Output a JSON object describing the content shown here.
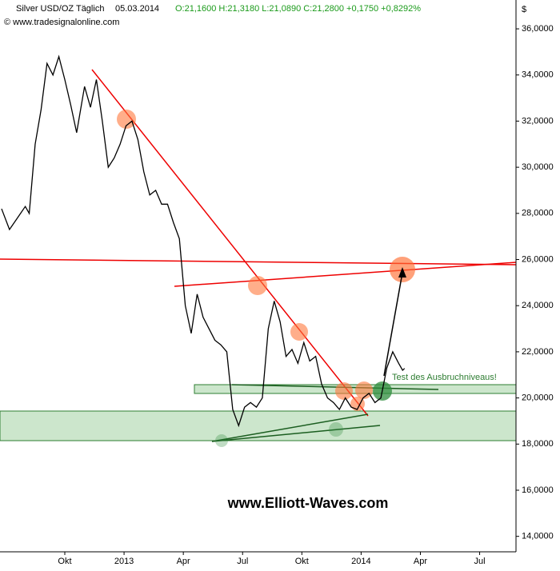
{
  "chart_data": {
    "type": "line",
    "title": "Silver USD/OZ Täglich",
    "date": "05.03.2014",
    "quote": "O:21,1600 H:21,3180 L:21,0890 C:21,2800 +0,1750 +0,8292%",
    "source": "© www.tradesignalonline.com",
    "y_unit": "$",
    "annotation": "Test des Ausbruchniveaus!",
    "watermark": "www.Elliott-Waves.com",
    "x": [
      -6.2,
      -5.8,
      -5.4,
      -5,
      -4.8,
      -4.5,
      -4.2,
      -3.9,
      -3.6,
      -3.3,
      -3,
      -2.7,
      -2.4,
      -2,
      -1.7,
      -1.4,
      -1.1,
      -0.8,
      -0.5,
      -0.2,
      0.1,
      0.4,
      0.7,
      1,
      1.3,
      1.6,
      1.9,
      2.2,
      2.5,
      2.8,
      3.1,
      3.4,
      3.7,
      4,
      4.3,
      4.6,
      4.9,
      5.2,
      5.5,
      5.8,
      6.1,
      6.4,
      6.7,
      7,
      7.3,
      7.6,
      7.9,
      8.2,
      8.5,
      8.8,
      9.1,
      9.4,
      9.7,
      10,
      10.3,
      10.6,
      10.9,
      11.2,
      11.5,
      11.8,
      12.1,
      12.4,
      12.7,
      13,
      13.3,
      13.6,
      13.9,
      14.1,
      14.2
    ],
    "series": [
      {
        "name": "Silver USD/OZ",
        "color": "#000000",
        "values": [
          28.2,
          27.3,
          27.8,
          28.3,
          28.0,
          31.0,
          32.5,
          34.5,
          34.0,
          34.8,
          33.8,
          32.7,
          31.5,
          33.5,
          32.6,
          33.8,
          32.0,
          30.0,
          30.4,
          31.0,
          31.8,
          32.0,
          31.2,
          29.8,
          28.8,
          29.0,
          28.4,
          28.4,
          27.6,
          26.9,
          24.0,
          22.8,
          24.5,
          23.5,
          23.0,
          22.5,
          22.3,
          22.0,
          19.5,
          18.8,
          19.6,
          19.8,
          19.6,
          20.0,
          23.0,
          24.2,
          23.3,
          21.8,
          22.1,
          21.5,
          22.4,
          21.6,
          21.8,
          20.6,
          20.0,
          19.8,
          19.5,
          20.0,
          19.6,
          19.5,
          20.0,
          20.2,
          19.8,
          20.0,
          21.3,
          22.0,
          21.5,
          21.2,
          21.28
        ]
      }
    ],
    "xlim": [
      -6.28,
      19.84
    ],
    "xticks": [
      {
        "value": -3,
        "label": "Okt"
      },
      {
        "value": 0,
        "label": "2013"
      },
      {
        "value": 3,
        "label": "Apr"
      },
      {
        "value": 6,
        "label": "Jul"
      },
      {
        "value": 9,
        "label": "Okt"
      },
      {
        "value": 12,
        "label": "2014"
      },
      {
        "value": 15,
        "label": "Apr"
      },
      {
        "value": 18,
        "label": "Jul"
      }
    ],
    "ylim": [
      13.33,
      37.25
    ],
    "yticks": [
      {
        "value": 14,
        "label": "14,0000"
      },
      {
        "value": 16,
        "label": "16,0000"
      },
      {
        "value": 18,
        "label": "18,0000"
      },
      {
        "value": 20,
        "label": "20,0000"
      },
      {
        "value": 22,
        "label": "22,0000"
      },
      {
        "value": 24,
        "label": "24,0000"
      },
      {
        "value": 26,
        "label": "26,0000"
      },
      {
        "value": 28,
        "label": "28,0000"
      },
      {
        "value": 30,
        "label": "30,0000"
      },
      {
        "value": 32,
        "label": "32,0000"
      },
      {
        "value": 34,
        "label": "34,0000"
      },
      {
        "value": 36,
        "label": "36,0000"
      }
    ]
  }
}
